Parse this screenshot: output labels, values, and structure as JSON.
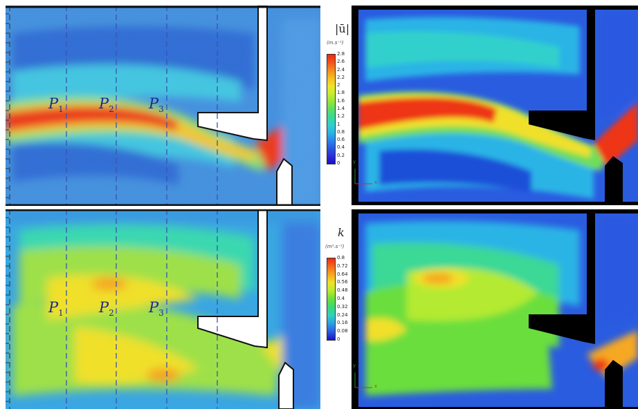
{
  "top_left": {
    "points": [
      {
        "name": "P",
        "sub": "1"
      },
      {
        "name": "P",
        "sub": "2"
      },
      {
        "name": "P",
        "sub": "3"
      }
    ]
  },
  "bottom_left": {
    "points": [
      {
        "name": "P",
        "sub": "1"
      },
      {
        "name": "P",
        "sub": "2"
      },
      {
        "name": "P",
        "sub": "3"
      }
    ]
  },
  "colorbar_velocity": {
    "title": "|ū|",
    "unit": "(m.s⁻¹)",
    "ticks": [
      "2.8",
      "2.6",
      "2.4",
      "2.2",
      "2",
      "1.8",
      "1.6",
      "1.4",
      "1.2",
      "1",
      "0.8",
      "0.6",
      "0.4",
      "0.2",
      "0"
    ],
    "colors": [
      "#ee2a14",
      "#f2541a",
      "#f58a1e",
      "#f6bc22",
      "#f0e22a",
      "#c8ec2e",
      "#94e63a",
      "#5ede60",
      "#3ad896",
      "#30d0cc",
      "#2cb4e6",
      "#2a86e8",
      "#2a58e0",
      "#2a2ed8",
      "#1a10c8"
    ]
  },
  "colorbar_k": {
    "title": "k",
    "unit": "(m².s⁻²)",
    "ticks": [
      "0.8",
      "0.72",
      "0.64",
      "0.56",
      "0.48",
      "0.4",
      "0.32",
      "0.24",
      "0.16",
      "0.08",
      "0"
    ],
    "colors": [
      "#ee2a14",
      "#f56a1c",
      "#f6a822",
      "#f0e22a",
      "#b4ea30",
      "#6ade3c",
      "#3ad87a",
      "#30d0c0",
      "#2c9ee6",
      "#2a5ce0",
      "#1a10c8"
    ]
  },
  "axis_labels": {
    "y": "y",
    "x": "x"
  }
}
